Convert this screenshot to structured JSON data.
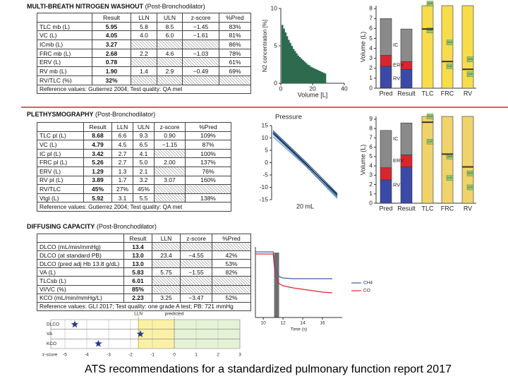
{
  "washout": {
    "title": "MULTI-BREATH NITROGEN WASHOUT",
    "subtitle": "(Post-Bronchodilator)",
    "table": {
      "header": [
        "Result",
        "LLN",
        "ULN",
        "z-score",
        "%Pred"
      ],
      "rows": [
        [
          "TLC mb (L)",
          "5.95",
          "5.8",
          "8.5",
          "−1.45",
          "83%"
        ],
        [
          "VC (L)",
          "4.05",
          "4.0",
          "6.0",
          "−1.61",
          "81%"
        ],
        [
          "ICmb (L)",
          "3.27",
          null,
          null,
          null,
          "86%"
        ],
        [
          "FRC mb (L)",
          "2.68",
          "2.2",
          "4.6",
          "−1.03",
          "78%"
        ],
        [
          "ERV (L)",
          "0.78",
          null,
          null,
          null,
          "61%"
        ],
        [
          "RV mb (L)",
          "1.90",
          "1.4",
          "2.9",
          "−0.49",
          "69%"
        ],
        [
          "RV/TLC (%)",
          "32%",
          null,
          null,
          null,
          null
        ]
      ],
      "footer": "Reference values: Gutierrez 2004; Test quality: QA met"
    },
    "chart": {
      "type": "bar",
      "xlabel": "Volume [L]",
      "ylabel": "N2 concentration [%]",
      "color": "#2d6a4f",
      "xlim": [
        0,
        40
      ],
      "xticks": [
        0,
        20,
        40
      ],
      "ylim": [
        0,
        10
      ],
      "yticks": [
        0,
        5,
        10
      ],
      "x": [
        1,
        2,
        3,
        4,
        5,
        6,
        7,
        8,
        9,
        10,
        11,
        12,
        13,
        14,
        15,
        16,
        17,
        18,
        19,
        20,
        21,
        22,
        23,
        24,
        25,
        26,
        27,
        28
      ],
      "values": [
        7.8,
        7.3,
        6.8,
        6.3,
        5.8,
        5.4,
        5.0,
        4.6,
        4.3,
        4.0,
        3.7,
        3.5,
        3.3,
        3.1,
        2.9,
        2.7,
        2.5,
        2.4,
        2.2,
        2.1,
        2.0,
        1.9,
        1.8,
        1.7,
        1.6,
        1.5,
        1.4,
        1.3
      ]
    },
    "volumes": {
      "type": "stacked-range",
      "ylabel": "Volume (L)",
      "ylim": [
        0,
        8.3
      ],
      "yticks": [
        0,
        1,
        2,
        3,
        4,
        5,
        6,
        7,
        8
      ],
      "categories": [
        "Pred",
        "Result",
        "TLC",
        "FRC",
        "RV"
      ],
      "stack": [
        {
          "name": "RV",
          "color": "#3b4aa8",
          "values": [
            2.2,
            1.9
          ]
        },
        {
          "name": "ERV",
          "color": "#d9262e",
          "values": [
            1.1,
            0.78
          ]
        },
        {
          "name": "IC",
          "color": "#8a8a8a",
          "values": [
            3.7,
            3.27
          ]
        }
      ],
      "ranges": {
        "color": "#f8dc4a",
        "low": [
          5.8,
          2.2,
          1.4
        ],
        "high": [
          8.5,
          4.6,
          2.9
        ],
        "result": [
          5.95,
          2.68,
          1.9
        ]
      },
      "uln_label": "ULN",
      "lln_label": "LLN"
    }
  },
  "pleth": {
    "title": "PLETHYSMOGRAPHY",
    "subtitle": "(Post-Bronchodilator)",
    "table": {
      "header": [
        "Result",
        "LLN",
        "ULN",
        "z-score",
        "%Pred"
      ],
      "rows": [
        [
          "TLC pl (L)",
          "8.68",
          "6.6",
          "9.3",
          "0.90",
          "109%"
        ],
        [
          "VC (L)",
          "4.79",
          "4.5",
          "6.5",
          "−1.15",
          "87%"
        ],
        [
          "IC pl (L)",
          "3.42",
          "2.7",
          "4.1",
          null,
          "100%"
        ],
        [
          "FRC pl (L)",
          "5.26",
          "2.7",
          "5.0",
          "2.00",
          "137%"
        ],
        [
          "ERV (L)",
          "1.29",
          "1.3",
          "2.1",
          null,
          "76%"
        ],
        [
          "RV pl (L)",
          "3.89",
          "1.7",
          "3.2",
          "3.07",
          "160%"
        ],
        [
          "RV/TLC",
          "45%",
          "27%",
          "45%",
          null,
          null
        ],
        [
          "Vtgl (L)",
          "5.92",
          "3.1",
          "5.5",
          null,
          "138%"
        ]
      ],
      "footer": "Reference values: Gutierrez 2004; Test quality: QA met"
    },
    "pressure": {
      "type": "line",
      "title": "Pressure",
      "annotation": "20 mL",
      "xlim": [
        0,
        1
      ],
      "ylim": [
        -15,
        15
      ],
      "yticks": [
        15,
        10,
        5,
        0,
        -5,
        -10,
        -15
      ],
      "series": [
        {
          "color": "#2f5f9e",
          "x": [
            0.02,
            0.5,
            0.98
          ],
          "y": [
            12.5,
            0,
            -13.5
          ]
        },
        {
          "color": "#4a78b8",
          "x": [
            0.02,
            0.5,
            0.98
          ],
          "y": [
            11.5,
            -0.8,
            -14
          ]
        },
        {
          "color": "#2f5f9e",
          "x": [
            0.02,
            0.5,
            0.98
          ],
          "y": [
            13,
            0.6,
            -12.5
          ]
        },
        {
          "color": "#6f95c8",
          "x": [
            0.02,
            0.5,
            0.98
          ],
          "y": [
            10.5,
            -1.2,
            -14.5
          ]
        },
        {
          "color": "#111111",
          "x": [
            0.02,
            0.5,
            0.98
          ],
          "y": [
            12,
            -0.3,
            -13
          ]
        }
      ]
    },
    "volumes": {
      "type": "stacked-range",
      "ylabel": "Volume (L)",
      "ylim": [
        0,
        9.3
      ],
      "yticks": [
        0,
        1,
        2,
        3,
        4,
        5,
        6,
        7,
        8,
        9
      ],
      "categories": [
        "Pred",
        "Result",
        "TLC",
        "FRC",
        "RV"
      ],
      "stack": [
        {
          "name": "RV",
          "color": "#3b4aa8",
          "values": [
            2.5,
            3.89
          ]
        },
        {
          "name": "ERV",
          "color": "#d9262e",
          "values": [
            1.3,
            1.29
          ]
        },
        {
          "name": "IC",
          "color": "#8a8a8a",
          "values": [
            4.0,
            3.42
          ]
        }
      ],
      "ranges": {
        "color": "#f1d36b",
        "low": [
          6.6,
          2.7,
          1.7
        ],
        "high": [
          9.3,
          5.0,
          3.2
        ],
        "result": [
          8.68,
          5.26,
          3.89
        ]
      },
      "uln_label": "ULN",
      "lln_label": "LLN"
    }
  },
  "dlco": {
    "title": "DIFFUSING CAPACITY",
    "subtitle": "(Post-Bronchodilator)",
    "table": {
      "header": [
        "Result",
        "LLN",
        "z-score",
        "%Pred"
      ],
      "rows": [
        [
          "DLCO (mL/min/mmHg)",
          "13.4",
          null,
          null,
          null
        ],
        [
          "DLCO (at standard PB)",
          "13.0",
          "23.4",
          "−4.55",
          "42%"
        ],
        [
          "DLCO (pred adj Hb 13.8 g/dL)",
          "13.0",
          null,
          null,
          "53%"
        ],
        [
          "VA (L)",
          "5.83",
          "5.75",
          "−1.55",
          "82%"
        ],
        [
          "TLCsb (L)",
          "6.01",
          null,
          null,
          null
        ],
        [
          "VI/VC (%)",
          "85%",
          null,
          null,
          null
        ],
        [
          "KCO (mL/min/mmHg/L)",
          "2.23",
          "3.25",
          "−3.47",
          "52%"
        ]
      ],
      "footer": "Reference values: GLI 2017; Test quality: one grade A test; PB: 721 mmHg"
    },
    "zscores": {
      "type": "dot",
      "xlabel": "z-score",
      "categories": [
        "DLCO",
        "VA",
        "KCO"
      ],
      "values": [
        -4.55,
        -1.55,
        -3.47
      ],
      "color": "#1f3c8c",
      "xlim": [
        -5,
        3
      ],
      "xticks": [
        -5,
        -4,
        -3,
        -2,
        -1,
        0,
        1,
        2,
        3
      ],
      "lln": {
        "value": -1.64,
        "label": "LLN"
      },
      "predicted": {
        "value": 0,
        "label": "predicted"
      }
    },
    "trace": {
      "type": "line",
      "xlabel": "Time (s)",
      "xlim": [
        9.2,
        18
      ],
      "xticks": [
        10,
        12,
        14,
        16
      ],
      "ylim": [
        0,
        1
      ],
      "breath_hold": [
        11.1,
        11.6
      ],
      "series": [
        {
          "name": "CH4",
          "color": "#3f5fa8",
          "x": [
            9.2,
            10,
            11,
            11.2,
            11.6,
            12,
            13,
            14,
            15,
            16,
            17
          ],
          "y": [
            0.93,
            0.93,
            0.93,
            0.7,
            0.58,
            0.56,
            0.55,
            0.55,
            0.55,
            0.55,
            0.55
          ]
        },
        {
          "name": "CO",
          "color": "#d9262e",
          "x": [
            9.2,
            10,
            11,
            11.2,
            11.6,
            12,
            13,
            14,
            15,
            16,
            17
          ],
          "y": [
            0.9,
            0.9,
            0.9,
            0.6,
            0.48,
            0.45,
            0.42,
            0.4,
            0.38,
            0.36,
            0.35
          ]
        }
      ]
    }
  },
  "caption": "ATS recommendations for a standardized pulmonary function report 2017"
}
